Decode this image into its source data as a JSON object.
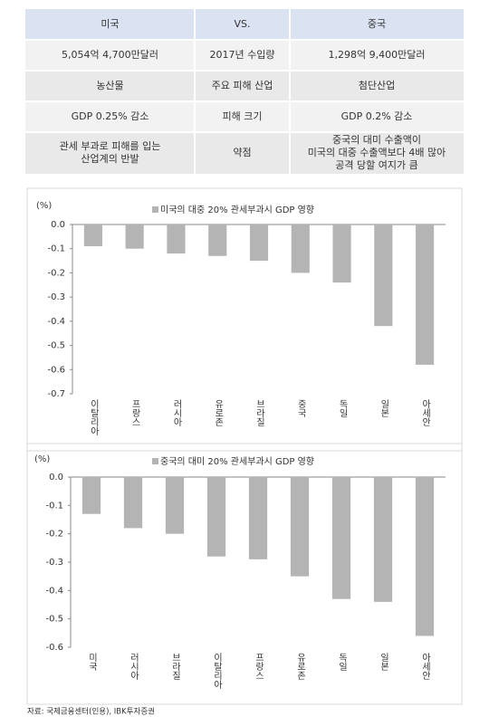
{
  "table": {
    "header": [
      "미국",
      "VS.",
      "중국"
    ],
    "rows": [
      [
        "5,054억 4,700만달러",
        "2017년 수입량",
        "1,298억 9,400만달러"
      ],
      [
        "농산물",
        "주요 피해 산업",
        "첨단산업"
      ],
      [
        "GDP 0.25% 감소",
        "피해 크기",
        "GDP 0.2% 감소"
      ],
      [
        "관세 부과로 피해를 입는\n산업계의 반발",
        "약점",
        "중국의 대미 수출액이\n미국의 대중 수출액보다 4배 많아\n공격  당할 여지가 큼"
      ]
    ]
  },
  "chart_data": [
    {
      "type": "bar",
      "title": "미국의 대중 20% 관세부과시 GDP 영향",
      "y_label": "(%)",
      "color": "#b4b4b4",
      "categories": [
        "이탈리아",
        "프랑스",
        "러시아",
        "유로존",
        "브라질",
        "중국",
        "독일",
        "일본",
        "아세안"
      ],
      "values": [
        -0.09,
        -0.1,
        -0.12,
        -0.13,
        -0.15,
        -0.2,
        -0.24,
        -0.42,
        -0.58
      ],
      "ylim": [
        -0.7,
        0
      ],
      "yticks": [
        {
          "value": 0,
          "label": "0.0"
        },
        -0.1,
        -0.2,
        -0.3,
        -0.4,
        -0.5,
        -0.6,
        -0.7
      ]
    },
    {
      "type": "bar",
      "title": "중국의 대미 20% 관세부과시 GDP 영향",
      "y_label": "(%)",
      "color": "#b4b4b4",
      "categories": [
        "미국",
        "러시아",
        "브라질",
        "이탈리아",
        "프랑스",
        "유로존",
        "독일",
        "일본",
        "아세안"
      ],
      "values": [
        -0.13,
        -0.18,
        -0.2,
        -0.28,
        -0.29,
        -0.35,
        -0.43,
        -0.44,
        -0.56
      ],
      "ylim": [
        -0.6,
        0
      ],
      "yticks": [
        {
          "value": 0,
          "label": "0.0"
        },
        -0.1,
        -0.2,
        -0.3,
        -0.4,
        -0.5,
        -0.6
      ]
    }
  ],
  "source": "자료: 국제금융센터(인용), IBK투자증권"
}
